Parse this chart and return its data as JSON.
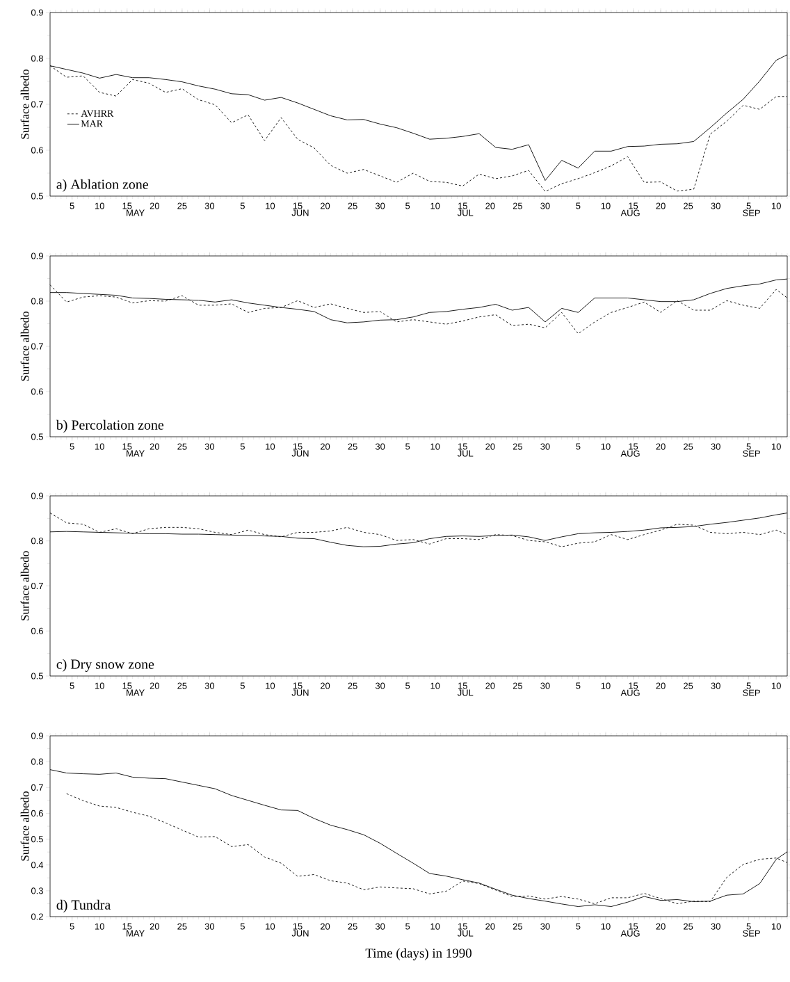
{
  "chart_data": [
    {
      "type": "line",
      "title": "a) Ablation zone",
      "ylabel": "Surface albedo",
      "legend": "left",
      "x": [
        "1990-05-01",
        "1990-05-04",
        "1990-05-07",
        "1990-05-10",
        "1990-05-13",
        "1990-05-16",
        "1990-05-19",
        "1990-05-22",
        "1990-05-25",
        "1990-05-28",
        "1990-05-31",
        "1990-06-03",
        "1990-06-06",
        "1990-06-09",
        "1990-06-12",
        "1990-06-15",
        "1990-06-18",
        "1990-06-21",
        "1990-06-24",
        "1990-06-27",
        "1990-06-30",
        "1990-07-03",
        "1990-07-06",
        "1990-07-09",
        "1990-07-12",
        "1990-07-15",
        "1990-07-18",
        "1990-07-21",
        "1990-07-24",
        "1990-07-27",
        "1990-07-30",
        "1990-08-02",
        "1990-08-05",
        "1990-08-08",
        "1990-08-11",
        "1990-08-14",
        "1990-08-17",
        "1990-08-20",
        "1990-08-23",
        "1990-08-26",
        "1990-08-29",
        "1990-09-01",
        "1990-09-04",
        "1990-09-07",
        "1990-09-10",
        "1990-09-12"
      ],
      "series": [
        {
          "name": "AVHRR",
          "color": "#000000",
          "line_style": "dashed",
          "values": [
            0.784,
            0.759,
            0.762,
            0.726,
            0.718,
            0.754,
            0.746,
            0.726,
            0.734,
            0.71,
            0.699,
            0.66,
            0.677,
            0.621,
            0.671,
            0.624,
            0.605,
            0.567,
            0.55,
            0.558,
            0.544,
            0.53,
            0.55,
            0.532,
            0.53,
            0.522,
            0.548,
            0.538,
            0.544,
            0.556,
            0.51,
            0.527,
            0.538,
            0.551,
            0.566,
            0.586,
            0.53,
            0.531,
            0.511,
            0.515,
            0.635,
            0.663,
            0.698,
            0.689,
            0.717,
            0.717
          ]
        },
        {
          "name": "MAR",
          "color": "#000000",
          "line_style": "solid",
          "values": [
            0.784,
            0.776,
            0.768,
            0.757,
            0.765,
            0.758,
            0.758,
            0.754,
            0.749,
            0.74,
            0.733,
            0.723,
            0.721,
            0.709,
            0.715,
            0.703,
            0.689,
            0.675,
            0.666,
            0.667,
            0.657,
            0.649,
            0.637,
            0.624,
            0.626,
            0.63,
            0.636,
            0.606,
            0.602,
            0.612,
            0.534,
            0.578,
            0.561,
            0.598,
            0.598,
            0.608,
            0.609,
            0.613,
            0.614,
            0.619,
            0.649,
            0.681,
            0.711,
            0.751,
            0.796,
            0.808
          ]
        }
      ],
      "xlim": [
        "1990-05-01",
        "1990-09-12"
      ],
      "xticks": [
        {
          "value": "1990-05-05",
          "label": "5"
        },
        {
          "value": "1990-05-10",
          "label": "10"
        },
        {
          "value": "1990-05-15",
          "label": "15"
        },
        {
          "value": "1990-05-20",
          "label": "20"
        },
        {
          "value": "1990-05-25",
          "label": "25"
        },
        {
          "value": "1990-05-30",
          "label": "30"
        },
        {
          "value": "1990-06-05",
          "label": "5"
        },
        {
          "value": "1990-06-10",
          "label": "10"
        },
        {
          "value": "1990-06-15",
          "label": "15"
        },
        {
          "value": "1990-06-20",
          "label": "20"
        },
        {
          "value": "1990-06-25",
          "label": "25"
        },
        {
          "value": "1990-06-30",
          "label": "30"
        },
        {
          "value": "1990-07-05",
          "label": "5"
        },
        {
          "value": "1990-07-10",
          "label": "10"
        },
        {
          "value": "1990-07-15",
          "label": "15"
        },
        {
          "value": "1990-07-20",
          "label": "20"
        },
        {
          "value": "1990-07-25",
          "label": "25"
        },
        {
          "value": "1990-07-30",
          "label": "30"
        },
        {
          "value": "1990-08-05",
          "label": "5"
        },
        {
          "value": "1990-08-10",
          "label": "10"
        },
        {
          "value": "1990-08-15",
          "label": "15"
        },
        {
          "value": "1990-08-20",
          "label": "20"
        },
        {
          "value": "1990-08-25",
          "label": "25"
        },
        {
          "value": "1990-08-30",
          "label": "30"
        },
        {
          "value": "1990-09-05",
          "label": "5"
        },
        {
          "value": "1990-09-10",
          "label": "10"
        }
      ],
      "x2lim": [
        "1990-05-01",
        "1990-09-12"
      ],
      "x2ticks": [
        {
          "value": "1990-05-16T12:00",
          "label": "MAY"
        },
        {
          "value": "1990-06-15T12:00",
          "label": "JUN"
        },
        {
          "value": "1990-07-15T12:00",
          "label": "JUL"
        },
        {
          "value": "1990-08-14T12:00",
          "label": "AUG"
        },
        {
          "value": "1990-09-05T12:00",
          "label": "SEP"
        }
      ],
      "ylim": [
        0.5,
        0.9
      ],
      "yticks": [
        0.5,
        0.6,
        0.7,
        0.8,
        0.9
      ]
    },
    {
      "type": "line",
      "title": "b) Percolation zone",
      "ylabel": "Surface albedo",
      "x": [
        "1990-05-01",
        "1990-05-04",
        "1990-05-07",
        "1990-05-10",
        "1990-05-13",
        "1990-05-16",
        "1990-05-19",
        "1990-05-22",
        "1990-05-25",
        "1990-05-28",
        "1990-05-31",
        "1990-06-03",
        "1990-06-06",
        "1990-06-09",
        "1990-06-12",
        "1990-06-15",
        "1990-06-18",
        "1990-06-21",
        "1990-06-24",
        "1990-06-27",
        "1990-06-30",
        "1990-07-03",
        "1990-07-06",
        "1990-07-09",
        "1990-07-12",
        "1990-07-15",
        "1990-07-18",
        "1990-07-21",
        "1990-07-24",
        "1990-07-27",
        "1990-07-30",
        "1990-08-02",
        "1990-08-05",
        "1990-08-08",
        "1990-08-11",
        "1990-08-14",
        "1990-08-17",
        "1990-08-20",
        "1990-08-23",
        "1990-08-26",
        "1990-08-29",
        "1990-09-01",
        "1990-09-04",
        "1990-09-07",
        "1990-09-10",
        "1990-09-12"
      ],
      "series": [
        {
          "color": "#000000",
          "line_style": "dashed",
          "values": [
            0.836,
            0.798,
            0.809,
            0.812,
            0.809,
            0.796,
            0.801,
            0.8,
            0.812,
            0.791,
            0.791,
            0.794,
            0.775,
            0.784,
            0.786,
            0.801,
            0.786,
            0.794,
            0.784,
            0.775,
            0.777,
            0.754,
            0.759,
            0.754,
            0.749,
            0.756,
            0.765,
            0.77,
            0.746,
            0.749,
            0.741,
            0.775,
            0.728,
            0.754,
            0.775,
            0.786,
            0.798,
            0.775,
            0.801,
            0.78,
            0.78,
            0.801,
            0.791,
            0.784,
            0.826,
            0.807
          ]
        },
        {
          "color": "#000000",
          "line_style": "solid",
          "values": [
            0.819,
            0.819,
            0.817,
            0.815,
            0.813,
            0.807,
            0.806,
            0.804,
            0.803,
            0.802,
            0.798,
            0.803,
            0.796,
            0.791,
            0.786,
            0.782,
            0.777,
            0.759,
            0.752,
            0.754,
            0.758,
            0.759,
            0.765,
            0.775,
            0.777,
            0.782,
            0.786,
            0.793,
            0.78,
            0.786,
            0.754,
            0.784,
            0.775,
            0.807,
            0.807,
            0.807,
            0.803,
            0.799,
            0.799,
            0.803,
            0.817,
            0.828,
            0.834,
            0.838,
            0.847,
            0.849
          ]
        }
      ],
      "xlim": [
        "1990-05-01",
        "1990-09-12"
      ],
      "xticks": [
        {
          "value": "1990-05-05",
          "label": "5"
        },
        {
          "value": "1990-05-10",
          "label": "10"
        },
        {
          "value": "1990-05-15",
          "label": "15"
        },
        {
          "value": "1990-05-20",
          "label": "20"
        },
        {
          "value": "1990-05-25",
          "label": "25"
        },
        {
          "value": "1990-05-30",
          "label": "30"
        },
        {
          "value": "1990-06-05",
          "label": "5"
        },
        {
          "value": "1990-06-10",
          "label": "10"
        },
        {
          "value": "1990-06-15",
          "label": "15"
        },
        {
          "value": "1990-06-20",
          "label": "20"
        },
        {
          "value": "1990-06-25",
          "label": "25"
        },
        {
          "value": "1990-06-30",
          "label": "30"
        },
        {
          "value": "1990-07-05",
          "label": "5"
        },
        {
          "value": "1990-07-10",
          "label": "10"
        },
        {
          "value": "1990-07-15",
          "label": "15"
        },
        {
          "value": "1990-07-20",
          "label": "20"
        },
        {
          "value": "1990-07-25",
          "label": "25"
        },
        {
          "value": "1990-07-30",
          "label": "30"
        },
        {
          "value": "1990-08-05",
          "label": "5"
        },
        {
          "value": "1990-08-10",
          "label": "10"
        },
        {
          "value": "1990-08-15",
          "label": "15"
        },
        {
          "value": "1990-08-20",
          "label": "20"
        },
        {
          "value": "1990-08-25",
          "label": "25"
        },
        {
          "value": "1990-08-30",
          "label": "30"
        },
        {
          "value": "1990-09-05",
          "label": "5"
        },
        {
          "value": "1990-09-10",
          "label": "10"
        }
      ],
      "x2lim": [
        "1990-05-01",
        "1990-09-12"
      ],
      "x2ticks": [
        {
          "value": "1990-05-16T12:00",
          "label": "MAY"
        },
        {
          "value": "1990-06-15T12:00",
          "label": "JUN"
        },
        {
          "value": "1990-07-15T12:00",
          "label": "JUL"
        },
        {
          "value": "1990-08-14T12:00",
          "label": "AUG"
        },
        {
          "value": "1990-09-05T12:00",
          "label": "SEP"
        }
      ],
      "ylim": [
        0.5,
        0.9
      ],
      "yticks": [
        0.5,
        0.6,
        0.7,
        0.8,
        0.9
      ]
    },
    {
      "type": "line",
      "title": "c) Dry snow zone",
      "ylabel": "Surface albedo",
      "x": [
        "1990-05-01",
        "1990-05-04",
        "1990-05-07",
        "1990-05-10",
        "1990-05-13",
        "1990-05-16",
        "1990-05-19",
        "1990-05-22",
        "1990-05-25",
        "1990-05-28",
        "1990-05-31",
        "1990-06-03",
        "1990-06-06",
        "1990-06-09",
        "1990-06-12",
        "1990-06-15",
        "1990-06-18",
        "1990-06-21",
        "1990-06-24",
        "1990-06-27",
        "1990-06-30",
        "1990-07-03",
        "1990-07-06",
        "1990-07-09",
        "1990-07-12",
        "1990-07-15",
        "1990-07-18",
        "1990-07-21",
        "1990-07-24",
        "1990-07-27",
        "1990-07-30",
        "1990-08-02",
        "1990-08-05",
        "1990-08-08",
        "1990-08-11",
        "1990-08-14",
        "1990-08-17",
        "1990-08-20",
        "1990-08-23",
        "1990-08-26",
        "1990-08-29",
        "1990-09-01",
        "1990-09-04",
        "1990-09-07",
        "1990-09-10",
        "1990-09-12"
      ],
      "series": [
        {
          "color": "#000000",
          "line_style": "dashed",
          "values": [
            0.862,
            0.84,
            0.837,
            0.819,
            0.827,
            0.816,
            0.827,
            0.83,
            0.83,
            0.827,
            0.819,
            0.814,
            0.824,
            0.814,
            0.809,
            0.819,
            0.819,
            0.822,
            0.83,
            0.819,
            0.814,
            0.801,
            0.803,
            0.793,
            0.805,
            0.805,
            0.803,
            0.814,
            0.812,
            0.801,
            0.798,
            0.787,
            0.795,
            0.798,
            0.814,
            0.803,
            0.814,
            0.824,
            0.837,
            0.835,
            0.819,
            0.816,
            0.819,
            0.814,
            0.824,
            0.814
          ]
        },
        {
          "color": "#000000",
          "line_style": "solid",
          "values": [
            0.82,
            0.821,
            0.82,
            0.819,
            0.818,
            0.817,
            0.816,
            0.816,
            0.815,
            0.815,
            0.814,
            0.813,
            0.812,
            0.811,
            0.81,
            0.806,
            0.805,
            0.797,
            0.79,
            0.787,
            0.788,
            0.793,
            0.796,
            0.805,
            0.81,
            0.811,
            0.81,
            0.812,
            0.813,
            0.809,
            0.801,
            0.809,
            0.816,
            0.818,
            0.819,
            0.821,
            0.824,
            0.829,
            0.83,
            0.832,
            0.837,
            0.841,
            0.846,
            0.851,
            0.858,
            0.862
          ]
        }
      ],
      "xlim": [
        "1990-05-01",
        "1990-09-12"
      ],
      "xticks": [
        {
          "value": "1990-05-05",
          "label": "5"
        },
        {
          "value": "1990-05-10",
          "label": "10"
        },
        {
          "value": "1990-05-15",
          "label": "15"
        },
        {
          "value": "1990-05-20",
          "label": "20"
        },
        {
          "value": "1990-05-25",
          "label": "25"
        },
        {
          "value": "1990-05-30",
          "label": "30"
        },
        {
          "value": "1990-06-05",
          "label": "5"
        },
        {
          "value": "1990-06-10",
          "label": "10"
        },
        {
          "value": "1990-06-15",
          "label": "15"
        },
        {
          "value": "1990-06-20",
          "label": "20"
        },
        {
          "value": "1990-06-25",
          "label": "25"
        },
        {
          "value": "1990-06-30",
          "label": "30"
        },
        {
          "value": "1990-07-05",
          "label": "5"
        },
        {
          "value": "1990-07-10",
          "label": "10"
        },
        {
          "value": "1990-07-15",
          "label": "15"
        },
        {
          "value": "1990-07-20",
          "label": "20"
        },
        {
          "value": "1990-07-25",
          "label": "25"
        },
        {
          "value": "1990-07-30",
          "label": "30"
        },
        {
          "value": "1990-08-05",
          "label": "5"
        },
        {
          "value": "1990-08-10",
          "label": "10"
        },
        {
          "value": "1990-08-15",
          "label": "15"
        },
        {
          "value": "1990-08-20",
          "label": "20"
        },
        {
          "value": "1990-08-25",
          "label": "25"
        },
        {
          "value": "1990-08-30",
          "label": "30"
        },
        {
          "value": "1990-09-05",
          "label": "5"
        },
        {
          "value": "1990-09-10",
          "label": "10"
        }
      ],
      "x2lim": [
        "1990-05-01",
        "1990-09-12"
      ],
      "x2ticks": [
        {
          "value": "1990-05-16T12:00",
          "label": "MAY"
        },
        {
          "value": "1990-06-15T12:00",
          "label": "JUN"
        },
        {
          "value": "1990-07-15T12:00",
          "label": "JUL"
        },
        {
          "value": "1990-08-14T12:00",
          "label": "AUG"
        },
        {
          "value": "1990-09-05T12:00",
          "label": "SEP"
        }
      ],
      "ylim": [
        0.5,
        0.9
      ],
      "yticks": [
        0.5,
        0.6,
        0.7,
        0.8,
        0.9
      ]
    },
    {
      "type": "line",
      "title": "d) Tundra",
      "ylabel": "Surface albedo",
      "xlabel": "Time (days) in 1990",
      "x": [
        "1990-05-01",
        "1990-05-04",
        "1990-05-07",
        "1990-05-10",
        "1990-05-13",
        "1990-05-16",
        "1990-05-19",
        "1990-05-22",
        "1990-05-25",
        "1990-05-28",
        "1990-05-31",
        "1990-06-03",
        "1990-06-06",
        "1990-06-09",
        "1990-06-12",
        "1990-06-15",
        "1990-06-18",
        "1990-06-21",
        "1990-06-24",
        "1990-06-27",
        "1990-06-30",
        "1990-07-03",
        "1990-07-06",
        "1990-07-09",
        "1990-07-12",
        "1990-07-15",
        "1990-07-18",
        "1990-07-21",
        "1990-07-24",
        "1990-07-27",
        "1990-07-30",
        "1990-08-02",
        "1990-08-05",
        "1990-08-08",
        "1990-08-11",
        "1990-08-14",
        "1990-08-17",
        "1990-08-20",
        "1990-08-23",
        "1990-08-26",
        "1990-08-29",
        "1990-09-01",
        "1990-09-04",
        "1990-09-07",
        "1990-09-10",
        "1990-09-12"
      ],
      "series": [
        {
          "color": "#000000",
          "line_style": "dashed",
          "values": [
            null,
            0.676,
            0.649,
            0.628,
            0.623,
            0.604,
            0.589,
            0.563,
            0.535,
            0.508,
            0.51,
            0.471,
            0.479,
            0.431,
            0.407,
            0.356,
            0.363,
            0.339,
            0.33,
            0.304,
            0.315,
            0.311,
            0.308,
            0.288,
            0.298,
            0.338,
            0.328,
            0.303,
            0.278,
            0.28,
            0.268,
            0.278,
            0.268,
            0.25,
            0.273,
            0.273,
            0.29,
            0.27,
            0.25,
            0.26,
            0.258,
            0.352,
            0.402,
            0.422,
            0.427,
            0.409
          ]
        },
        {
          "color": "#000000",
          "line_style": "solid",
          "values": [
            0.769,
            0.756,
            0.753,
            0.751,
            0.756,
            0.74,
            0.736,
            0.734,
            0.721,
            0.708,
            0.695,
            0.669,
            0.65,
            0.631,
            0.613,
            0.611,
            0.58,
            0.554,
            0.537,
            0.517,
            0.484,
            0.445,
            0.407,
            0.367,
            0.357,
            0.343,
            0.33,
            0.306,
            0.283,
            0.27,
            0.26,
            0.249,
            0.239,
            0.246,
            0.239,
            0.256,
            0.278,
            0.263,
            0.266,
            0.258,
            0.26,
            0.283,
            0.288,
            0.328,
            0.422,
            0.451
          ]
        }
      ],
      "xlim": [
        "1990-05-01",
        "1990-09-12"
      ],
      "xticks": [
        {
          "value": "1990-05-05",
          "label": "5"
        },
        {
          "value": "1990-05-10",
          "label": "10"
        },
        {
          "value": "1990-05-15",
          "label": "15"
        },
        {
          "value": "1990-05-20",
          "label": "20"
        },
        {
          "value": "1990-05-25",
          "label": "25"
        },
        {
          "value": "1990-05-30",
          "label": "30"
        },
        {
          "value": "1990-06-05",
          "label": "5"
        },
        {
          "value": "1990-06-10",
          "label": "10"
        },
        {
          "value": "1990-06-15",
          "label": "15"
        },
        {
          "value": "1990-06-20",
          "label": "20"
        },
        {
          "value": "1990-06-25",
          "label": "25"
        },
        {
          "value": "1990-06-30",
          "label": "30"
        },
        {
          "value": "1990-07-05",
          "label": "5"
        },
        {
          "value": "1990-07-10",
          "label": "10"
        },
        {
          "value": "1990-07-15",
          "label": "15"
        },
        {
          "value": "1990-07-20",
          "label": "20"
        },
        {
          "value": "1990-07-25",
          "label": "25"
        },
        {
          "value": "1990-07-30",
          "label": "30"
        },
        {
          "value": "1990-08-05",
          "label": "5"
        },
        {
          "value": "1990-08-10",
          "label": "10"
        },
        {
          "value": "1990-08-15",
          "label": "15"
        },
        {
          "value": "1990-08-20",
          "label": "20"
        },
        {
          "value": "1990-08-25",
          "label": "25"
        },
        {
          "value": "1990-08-30",
          "label": "30"
        },
        {
          "value": "1990-09-05",
          "label": "5"
        },
        {
          "value": "1990-09-10",
          "label": "10"
        }
      ],
      "x2lim": [
        "1990-05-01",
        "1990-09-12"
      ],
      "x2ticks": [
        {
          "value": "1990-05-16T12:00",
          "label": "MAY"
        },
        {
          "value": "1990-06-15T12:00",
          "label": "JUN"
        },
        {
          "value": "1990-07-15T12:00",
          "label": "JUL"
        },
        {
          "value": "1990-08-14T12:00",
          "label": "AUG"
        },
        {
          "value": "1990-09-05T12:00",
          "label": "SEP"
        }
      ],
      "ylim": [
        0.2,
        0.9
      ],
      "yticks": [
        0.2,
        0.3,
        0.4,
        0.5,
        0.6,
        0.7,
        0.8,
        0.9
      ]
    }
  ]
}
